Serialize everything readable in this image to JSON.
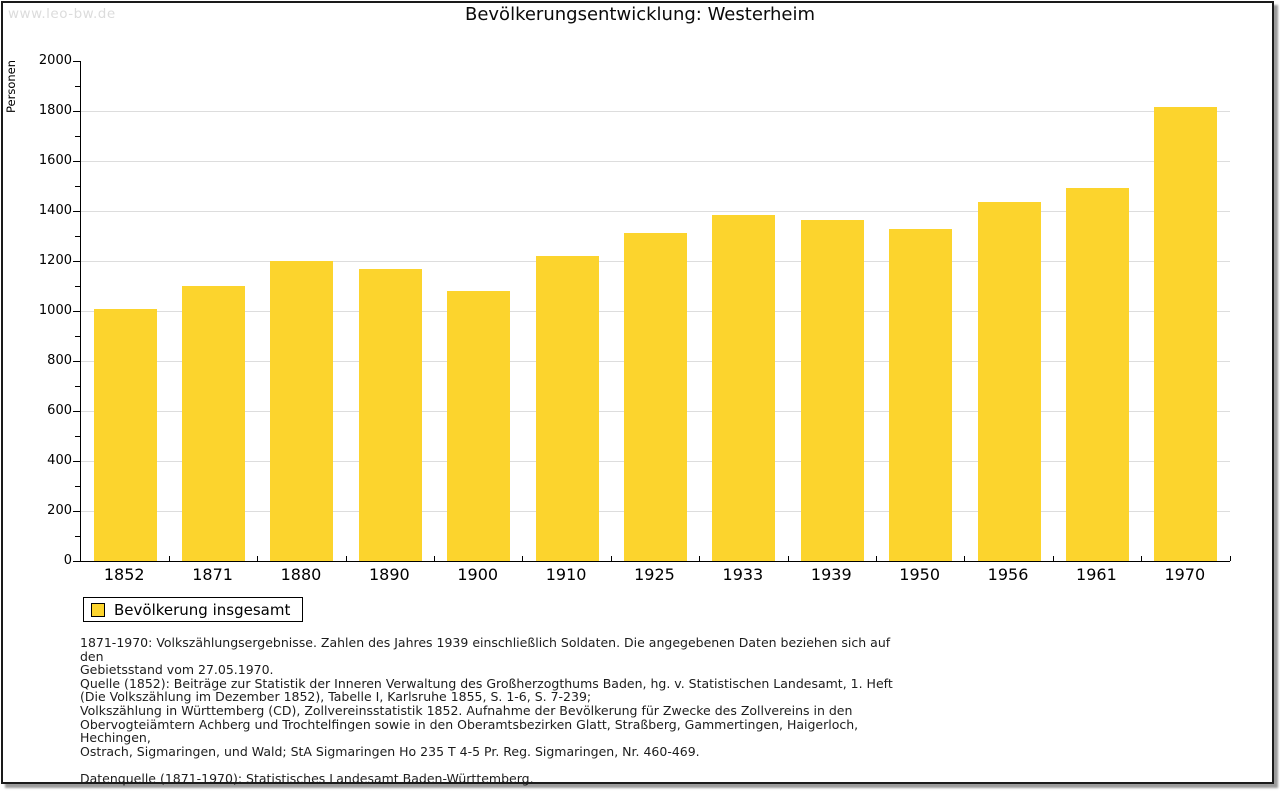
{
  "watermark": "www.leo-bw.de",
  "title": "Bevölkerungsentwicklung: Westerheim",
  "chart_data": {
    "type": "bar",
    "title": "Bevölkerungsentwicklung: Westerheim",
    "xlabel": "",
    "ylabel": "Personen",
    "categories": [
      "1852",
      "1871",
      "1880",
      "1890",
      "1900",
      "1910",
      "1925",
      "1933",
      "1939",
      "1950",
      "1956",
      "1961",
      "1970"
    ],
    "series": [
      {
        "name": "Bevölkerung insgesamt",
        "values": [
          1008,
          1100,
          1200,
          1168,
          1080,
          1222,
          1312,
          1386,
          1365,
          1330,
          1436,
          1494,
          1815
        ]
      }
    ],
    "ylim": [
      0,
      2000
    ],
    "ytick_step": 200,
    "yminor_step": 100,
    "ytick_labels": [
      "0",
      "200",
      "400",
      "600",
      "800",
      "1000",
      "1200",
      "1400",
      "1600",
      "1800",
      "2000"
    ],
    "grid": "horizontal-major-only",
    "legend_position": "bottom-left",
    "bar_color": "#FCD42D",
    "grid_color": "#DDDDDD",
    "axis_color": "#000000"
  },
  "legend": {
    "label": "Bevölkerung insgesamt"
  },
  "footer": {
    "notes": "1871-1970: Volkszählungsergebnisse. Zahlen des Jahres 1939 einschließlich Soldaten. Die angegebenen Daten beziehen sich auf den\nGebietsstand vom 27.05.1970.\nQuelle (1852): Beiträge zur Statistik der Inneren Verwaltung des Großherzogthums Baden, hg. v. Statistischen Landesamt, 1. Heft\n(Die Volkszählung im Dezember 1852), Tabelle I, Karlsruhe 1855, S. 1-6, S. 7-239;\nVolkszählung in Württemberg (CD), Zollvereinsstatistik 1852. Aufnahme der Bevölkerung für Zwecke des Zollvereins in den\nObervogteiämtern Achberg und Trochtelfingen sowie in den Oberamtsbezirken Glatt, Straßberg, Gammertingen, Haigerloch, Hechingen,\nOstrach, Sigmaringen, und Wald; StA Sigmaringen Ho 235 T 4-5 Pr. Reg. Sigmaringen, Nr. 460-469.",
    "datasource": "Datenquelle (1871-1970): Statistisches Landesamt Baden-Württemberg."
  }
}
